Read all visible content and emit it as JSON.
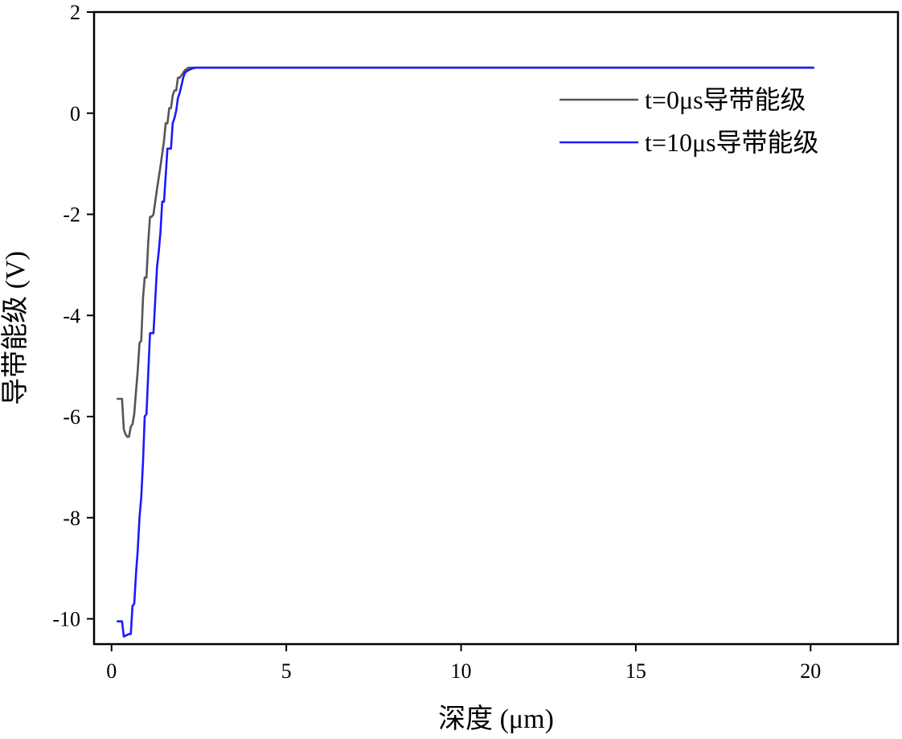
{
  "chart_data": {
    "type": "line",
    "xlabel": "深度 (μm)",
    "ylabel": "导带能级 (V)",
    "xlim": [
      -0.5,
      22.5
    ],
    "ylim": [
      -10.5,
      2
    ],
    "xticks": [
      0,
      5,
      10,
      15,
      20
    ],
    "yticks": [
      2,
      0,
      -2,
      -4,
      -6,
      -8,
      -10
    ],
    "xtick_labels": [
      "0",
      "5",
      "10",
      "15",
      "20"
    ],
    "ytick_labels": [
      "2",
      "0",
      "-2",
      "-4",
      "-6",
      "-8",
      "-10"
    ],
    "legend": {
      "position": "top-right"
    },
    "series": [
      {
        "name": "t=0μs导带能级",
        "color": "#555555",
        "x": [
          0.15,
          0.3,
          0.35,
          0.4,
          0.45,
          0.5,
          0.55,
          0.6,
          0.65,
          0.7,
          0.75,
          0.8,
          0.85,
          0.9,
          0.95,
          1.0,
          1.05,
          1.1,
          1.15,
          1.2,
          1.3,
          1.4,
          1.45,
          1.5,
          1.55,
          1.6,
          1.65,
          1.7,
          1.75,
          1.8,
          1.85,
          1.9,
          1.95,
          2.0,
          2.05,
          2.1,
          2.2,
          2.3,
          2.4,
          2.5,
          2.6,
          3.0,
          5.0,
          10.0,
          15.0,
          20.1
        ],
        "values": [
          -5.65,
          -5.65,
          -6.25,
          -6.35,
          -6.4,
          -6.4,
          -6.2,
          -6.15,
          -5.95,
          -5.5,
          -5.1,
          -4.55,
          -4.5,
          -3.65,
          -3.25,
          -3.25,
          -2.55,
          -2.05,
          -2.05,
          -2.0,
          -1.5,
          -1.05,
          -0.8,
          -0.55,
          -0.2,
          -0.2,
          0.1,
          0.1,
          0.35,
          0.45,
          0.45,
          0.7,
          0.7,
          0.75,
          0.8,
          0.85,
          0.9,
          0.9,
          0.9,
          0.9,
          0.9,
          0.9,
          0.9,
          0.9,
          0.9,
          0.9
        ]
      },
      {
        "name": "t=10μs导带能级",
        "color": "#1a1aff",
        "x": [
          0.15,
          0.3,
          0.35,
          0.5,
          0.55,
          0.6,
          0.65,
          0.7,
          0.75,
          0.8,
          0.85,
          0.9,
          0.95,
          1.0,
          1.1,
          1.2,
          1.3,
          1.35,
          1.4,
          1.45,
          1.5,
          1.6,
          1.7,
          1.75,
          1.8,
          1.85,
          1.9,
          1.95,
          2.0,
          2.05,
          2.1,
          2.2,
          2.3,
          2.4,
          2.5,
          2.6,
          2.7,
          2.8,
          3.0,
          5.0,
          10.0,
          15.0,
          20.1
        ],
        "values": [
          -10.05,
          -10.05,
          -10.35,
          -10.3,
          -10.3,
          -9.75,
          -9.7,
          -9.1,
          -8.65,
          -8.0,
          -7.6,
          -6.9,
          -6.0,
          -5.95,
          -4.35,
          -4.35,
          -3.05,
          -2.75,
          -2.35,
          -1.75,
          -1.75,
          -0.7,
          -0.7,
          -0.2,
          -0.1,
          0.05,
          0.3,
          0.4,
          0.55,
          0.7,
          0.8,
          0.85,
          0.88,
          0.9,
          0.9,
          0.9,
          0.9,
          0.9,
          0.9,
          0.9,
          0.9,
          0.9,
          0.9
        ]
      }
    ]
  }
}
